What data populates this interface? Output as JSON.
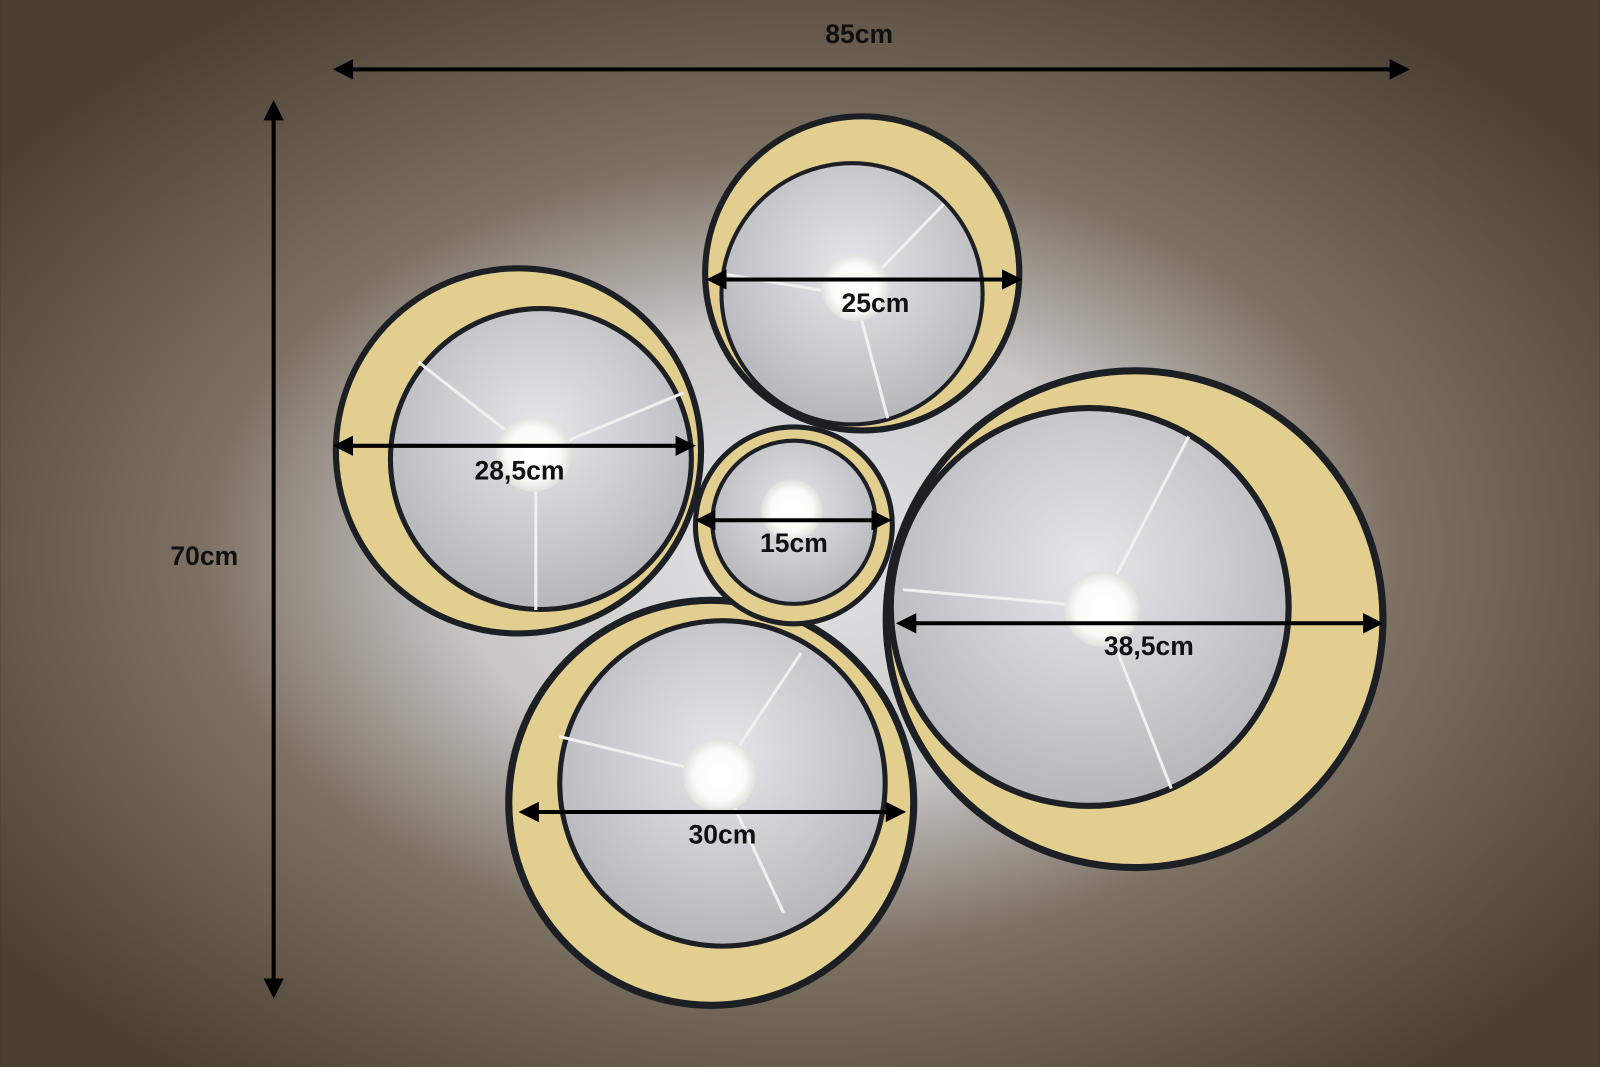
{
  "dimensions": {
    "overall_width": "85cm",
    "overall_height": "70cm"
  },
  "shades": [
    {
      "id": "top",
      "diameter": "25cm"
    },
    {
      "id": "left",
      "diameter": "28,5cm"
    },
    {
      "id": "center",
      "diameter": "15cm"
    },
    {
      "id": "right",
      "diameter": "38,5cm"
    },
    {
      "id": "bottom",
      "diameter": "30cm"
    }
  ],
  "colors": {
    "shade_outer": "#1c1f24",
    "shade_lining": "#e2cf8f",
    "shade_inner": "#bfc1c5",
    "ceiling_dark": "#4a3f31",
    "arrow": "#000000"
  }
}
